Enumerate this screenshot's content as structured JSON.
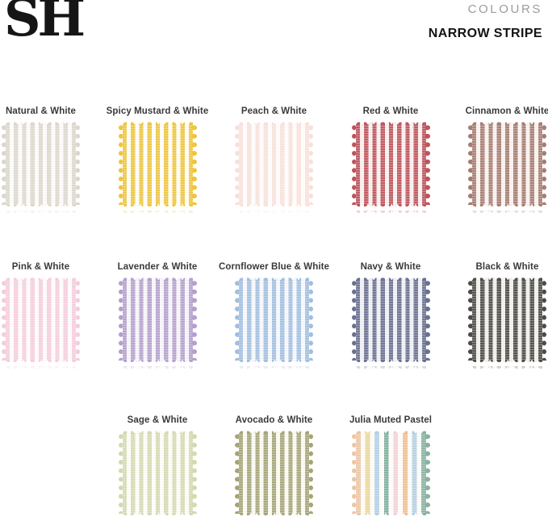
{
  "header": {
    "logo": "SH",
    "collection_label": "COLOURS",
    "collection_name": "NARROW STRIPE"
  },
  "colors": {
    "background": "#ffffff",
    "logo_text": "#151515",
    "collection_label_text": "#9c9c9c",
    "collection_name_text": "#131313",
    "swatch_label_text": "#3a3a3a"
  },
  "swatches": {
    "rows": [
      {
        "items": [
          {
            "label": "Natural & White",
            "stripes": [
              "#dcd7cd"
            ],
            "white": "#fbfaf8"
          },
          {
            "label": "Spicy Mustard & White",
            "stripes": [
              "#eec53e"
            ],
            "white": "#fdfcf6"
          },
          {
            "label": "Peach & White",
            "stripes": [
              "#f8e0da"
            ],
            "white": "#fefcfb"
          },
          {
            "label": "Red & White",
            "stripes": [
              "#bd545b"
            ],
            "white": "#f7eded"
          },
          {
            "label": "Cinnamon & White",
            "stripes": [
              "#a67c72"
            ],
            "white": "#f6f0ec"
          }
        ]
      },
      {
        "items": [
          {
            "label": "Pink & White",
            "stripes": [
              "#f4cddc"
            ],
            "white": "#fefafc"
          },
          {
            "label": "Lavender & White",
            "stripes": [
              "#b4a0cc"
            ],
            "white": "#f5f2f8"
          },
          {
            "label": "Cornflower Blue & White",
            "stripes": [
              "#a2bedf"
            ],
            "white": "#f3f6fb"
          },
          {
            "label": "Navy & White",
            "stripes": [
              "#6a7090"
            ],
            "white": "#edeef3"
          },
          {
            "label": "Black & White",
            "stripes": [
              "#4d4c48"
            ],
            "white": "#efede7"
          }
        ]
      },
      {
        "items": [
          {
            "label": "Sage & White",
            "stripes": [
              "#d5d9b2"
            ],
            "white": "#fcfcf6"
          },
          {
            "label": "Avocado & White",
            "stripes": [
              "#a6a478"
            ],
            "white": "#f8f8f0"
          },
          {
            "label": "Julia Muted Pastel",
            "stripes": [
              "#ecc6a4",
              "#e7d79c",
              "#b3d0e2",
              "#7fae9d",
              "#f4d0d8",
              "#efbe92",
              "#b3d0e2",
              "#8ab1a1"
            ],
            "white": "#fdfbf7"
          }
        ]
      }
    ]
  }
}
